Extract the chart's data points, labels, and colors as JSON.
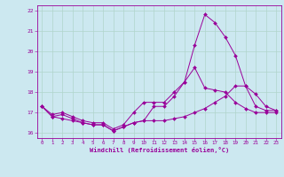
{
  "xlabel": "Windchill (Refroidissement éolien,°C)",
  "background_color": "#cce8f0",
  "grid_color": "#b0d4cc",
  "line_color": "#990099",
  "xlim": [
    -0.5,
    23.5
  ],
  "ylim": [
    15.75,
    22.25
  ],
  "yticks": [
    16,
    17,
    18,
    19,
    20,
    21,
    22
  ],
  "xticks": [
    0,
    1,
    2,
    3,
    4,
    5,
    6,
    7,
    8,
    9,
    10,
    11,
    12,
    13,
    14,
    15,
    16,
    17,
    18,
    19,
    20,
    21,
    22,
    23
  ],
  "series1_x": [
    0,
    1,
    2,
    3,
    4,
    5,
    6,
    7,
    8,
    9,
    10,
    11,
    12,
    13,
    14,
    15,
    16,
    17,
    18,
    19,
    20,
    21,
    22,
    23
  ],
  "series1_y": [
    17.3,
    16.8,
    16.9,
    16.7,
    16.5,
    16.4,
    16.4,
    16.1,
    16.3,
    16.5,
    16.6,
    17.3,
    17.3,
    17.8,
    18.5,
    20.3,
    21.8,
    21.4,
    20.7,
    19.8,
    18.3,
    17.9,
    17.3,
    17.1
  ],
  "series2_x": [
    0,
    1,
    2,
    3,
    4,
    5,
    6,
    7,
    8,
    9,
    10,
    11,
    12,
    13,
    14,
    15,
    16,
    17,
    18,
    19,
    20,
    21,
    22,
    23
  ],
  "series2_y": [
    17.3,
    16.8,
    16.7,
    16.6,
    16.5,
    16.4,
    16.4,
    16.1,
    16.3,
    16.5,
    16.6,
    16.6,
    16.6,
    16.7,
    16.8,
    17.0,
    17.2,
    17.5,
    17.8,
    18.3,
    18.3,
    17.3,
    17.1,
    17.1
  ],
  "series3_x": [
    0,
    1,
    2,
    3,
    4,
    5,
    6,
    7,
    8,
    9,
    10,
    11,
    12,
    13,
    14,
    15,
    16,
    17,
    18,
    19,
    20,
    21,
    22,
    23
  ],
  "series3_y": [
    17.3,
    16.9,
    17.0,
    16.8,
    16.6,
    16.5,
    16.5,
    16.2,
    16.4,
    17.0,
    17.5,
    17.5,
    17.5,
    18.0,
    18.5,
    19.2,
    18.2,
    18.1,
    18.0,
    17.5,
    17.2,
    17.0,
    17.0,
    17.0
  ],
  "tick_fontsize": 4.2,
  "xlabel_fontsize": 5.0,
  "marker_size": 2.0
}
